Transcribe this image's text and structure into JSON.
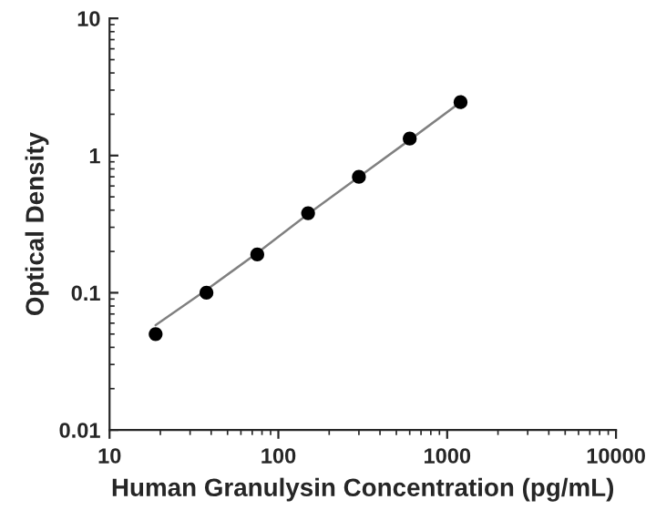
{
  "chart_data": {
    "type": "scatter",
    "xlabel": "Human Granulysin Concentration (pg/mL)",
    "ylabel": "Optical Density",
    "log": "xy",
    "xlim": [
      10,
      10000
    ],
    "ylim": [
      0.01,
      10
    ],
    "xticks": [
      10,
      100,
      1000,
      10000
    ],
    "yticks": [
      0.01,
      0.1,
      1,
      10
    ],
    "grid": false,
    "legend": false,
    "marker": "circle",
    "series": [
      {
        "color": "#000000",
        "x": [
          18.75,
          37.5,
          75,
          150,
          300,
          600,
          1200
        ],
        "values": [
          0.05,
          0.1,
          0.19,
          0.38,
          0.7,
          1.33,
          2.45
        ]
      },
      {
        "type": "line",
        "color": "#808080",
        "marker": "none",
        "line_style": "solid",
        "x": [
          18.75,
          37.5,
          75,
          150,
          300,
          600,
          1200
        ],
        "values": [
          0.058,
          0.105,
          0.195,
          0.375,
          0.7,
          1.3,
          2.45
        ]
      }
    ]
  }
}
